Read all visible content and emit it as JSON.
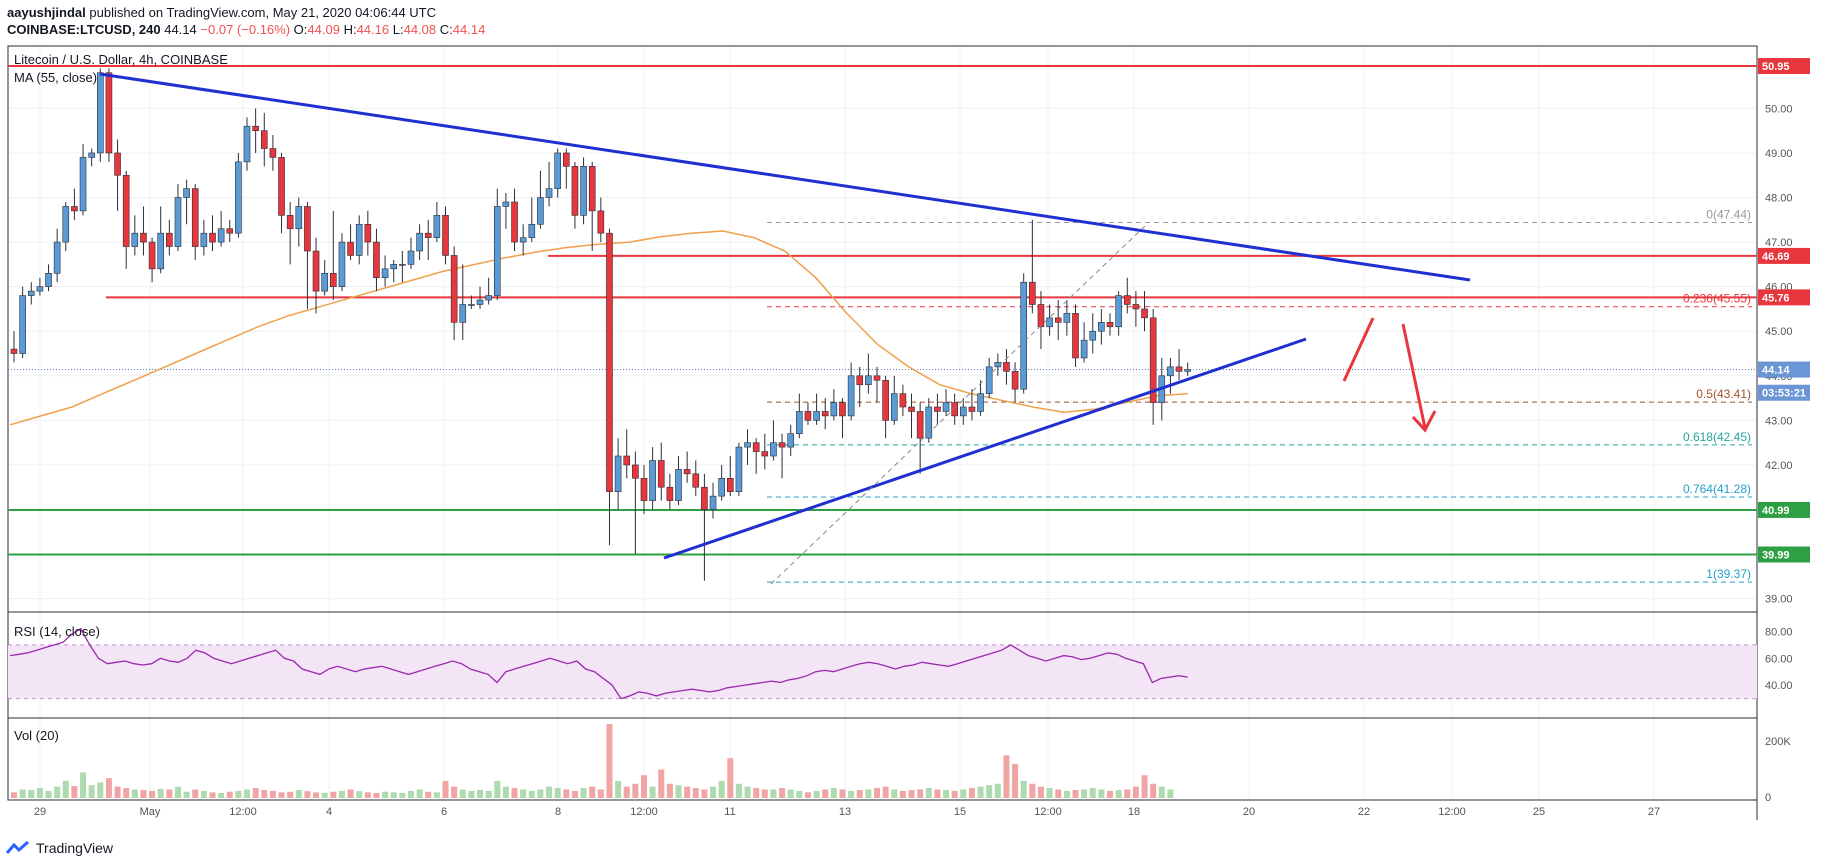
{
  "header": {
    "author": "aayushjindal",
    "published": "published on TradingView.com, May 21, 2020 04:06:44 UTC",
    "symbol": "COINBASE:LTCUSD, 240",
    "last": "44.14",
    "change": "−0.07 (−0.16%)",
    "o_label": "O:",
    "o": "44.09",
    "h_label": "H:",
    "h": "44.16",
    "l_label": "L:",
    "l": "44.08",
    "c_label": "C:",
    "c": "44.14"
  },
  "footer": {
    "brand": "TradingView"
  },
  "colors": {
    "up": "#5b9bd5",
    "down": "#e8363d",
    "trend": "#1f2fd1",
    "resistance": "#e8363d",
    "support": "#2ea043",
    "ma": "#f0a04b",
    "rsi": "#9c27b0",
    "last_price_bg": "#6b96d6"
  },
  "chart_data": {
    "type": "candlestick",
    "title": "Litecoin / U.S. Dollar, 4h, COINBASE",
    "indicator": "MA (55, close)",
    "ylim": [
      38.7,
      51.4
    ],
    "y_ticks": [
      "39.00",
      "40.00",
      "41.00",
      "42.00",
      "43.00",
      "44.00",
      "45.00",
      "46.00",
      "47.00",
      "48.00",
      "49.00",
      "50.00"
    ],
    "x_ticks": [
      "29",
      "May",
      "12:00",
      "4",
      "6",
      "8",
      "12:00",
      "11",
      "13",
      "15",
      "12:00",
      "18",
      "20",
      "22",
      "12:00",
      "25",
      "27"
    ],
    "price_axis_labels": [
      {
        "value": 50.95,
        "text": "50.95",
        "kind": "resistance"
      },
      {
        "value": 46.69,
        "text": "46.69",
        "kind": "resistance"
      },
      {
        "value": 45.76,
        "text": "45.76",
        "kind": "resistance"
      },
      {
        "value": 44.14,
        "text": "44.14",
        "kind": "last"
      },
      {
        "value": 43.62,
        "text": "03:53:21",
        "kind": "countdown"
      },
      {
        "value": 40.99,
        "text": "40.99",
        "kind": "support"
      },
      {
        "value": 39.99,
        "text": "39.99",
        "kind": "support"
      }
    ],
    "fib_levels": [
      {
        "ratio": "0",
        "value": 47.44,
        "text": "0(47.44)",
        "color": "#999999"
      },
      {
        "ratio": "0.236",
        "value": 45.55,
        "text": "0.236(45.55)",
        "color": "#e8363d"
      },
      {
        "ratio": "0.5",
        "value": 43.41,
        "text": "0.5(43.41)",
        "color": "#a0522d"
      },
      {
        "ratio": "0.618",
        "value": 42.45,
        "text": "0.618(42.45)",
        "color": "#26a69a"
      },
      {
        "ratio": "0.764",
        "value": 41.28,
        "text": "0.764(41.28)",
        "color": "#26a0c8"
      },
      {
        "ratio": "1",
        "value": 39.37,
        "text": "1(39.37)",
        "color": "#26a0c8"
      }
    ],
    "candles": [
      [
        44.6,
        44.5,
        45.0,
        44.3
      ],
      [
        44.5,
        45.8,
        46.0,
        44.4
      ],
      [
        45.8,
        45.9,
        46.1,
        45.6
      ],
      [
        45.9,
        46.0,
        46.2,
        45.8
      ],
      [
        46.0,
        46.3,
        46.5,
        45.9
      ],
      [
        46.3,
        47.0,
        47.3,
        46.1
      ],
      [
        47.0,
        47.8,
        47.9,
        46.8
      ],
      [
        47.8,
        47.7,
        48.2,
        47.5
      ],
      [
        47.7,
        48.9,
        49.2,
        47.6
      ],
      [
        48.9,
        49.0,
        49.1,
        48.7
      ],
      [
        49.0,
        50.8,
        50.9,
        48.8
      ],
      [
        50.8,
        49.0,
        50.9,
        48.8
      ],
      [
        49.0,
        48.5,
        49.3,
        47.7
      ],
      [
        48.5,
        46.9,
        48.6,
        46.4
      ],
      [
        46.9,
        47.2,
        47.6,
        46.7
      ],
      [
        47.2,
        47.0,
        47.8,
        46.7
      ],
      [
        47.0,
        46.4,
        47.1,
        46.1
      ],
      [
        46.4,
        47.2,
        47.8,
        46.3
      ],
      [
        47.2,
        46.9,
        47.5,
        46.7
      ],
      [
        46.9,
        48.0,
        48.3,
        46.8
      ],
      [
        48.0,
        48.2,
        48.4,
        47.4
      ],
      [
        48.2,
        46.9,
        48.3,
        46.6
      ],
      [
        46.9,
        47.2,
        47.5,
        46.7
      ],
      [
        47.2,
        47.0,
        47.6,
        46.8
      ],
      [
        47.0,
        47.3,
        47.7,
        46.9
      ],
      [
        47.3,
        47.2,
        47.5,
        47.0
      ],
      [
        47.2,
        48.8,
        49.0,
        47.1
      ],
      [
        48.8,
        49.6,
        49.8,
        48.6
      ],
      [
        49.6,
        49.5,
        50.0,
        49.0
      ],
      [
        49.5,
        49.1,
        49.9,
        48.7
      ],
      [
        49.1,
        48.9,
        49.4,
        48.6
      ],
      [
        48.9,
        47.6,
        49.0,
        47.2
      ],
      [
        47.6,
        47.3,
        47.9,
        46.5
      ],
      [
        47.3,
        47.8,
        48.0,
        46.9
      ],
      [
        47.8,
        46.8,
        47.9,
        45.5
      ],
      [
        46.8,
        45.9,
        47.1,
        45.4
      ],
      [
        45.9,
        46.3,
        46.6,
        45.8
      ],
      [
        46.3,
        46.0,
        47.7,
        45.7
      ],
      [
        46.0,
        47.0,
        47.2,
        45.9
      ],
      [
        47.0,
        46.7,
        47.4,
        46.6
      ],
      [
        46.7,
        47.4,
        47.6,
        46.5
      ],
      [
        47.4,
        47.0,
        47.7,
        46.7
      ],
      [
        47.0,
        46.2,
        47.3,
        45.9
      ],
      [
        46.2,
        46.4,
        46.7,
        46.0
      ],
      [
        46.4,
        46.5,
        46.6,
        46.1
      ],
      [
        46.5,
        46.5,
        46.8,
        46.1
      ],
      [
        46.5,
        46.8,
        47.1,
        46.4
      ],
      [
        46.8,
        47.2,
        47.4,
        46.6
      ],
      [
        47.2,
        47.1,
        47.5,
        46.6
      ],
      [
        47.1,
        47.6,
        47.9,
        47.0
      ],
      [
        47.6,
        46.7,
        47.8,
        46.5
      ],
      [
        46.7,
        45.2,
        46.9,
        44.8
      ],
      [
        45.2,
        45.6,
        46.5,
        44.8
      ],
      [
        45.6,
        45.6,
        45.8,
        45.5
      ],
      [
        45.6,
        45.7,
        46.0,
        45.5
      ],
      [
        45.7,
        45.8,
        46.2,
        45.6
      ],
      [
        45.8,
        47.8,
        48.2,
        45.7
      ],
      [
        47.8,
        47.9,
        48.1,
        47.3
      ],
      [
        47.9,
        47.0,
        48.2,
        46.8
      ],
      [
        47.0,
        47.1,
        47.4,
        46.7
      ],
      [
        47.1,
        47.4,
        48.0,
        47.0
      ],
      [
        47.4,
        48.0,
        48.6,
        47.3
      ],
      [
        48.0,
        48.2,
        48.8,
        47.8
      ],
      [
        48.2,
        49.0,
        49.1,
        48.0
      ],
      [
        49.0,
        48.7,
        49.1,
        48.2
      ],
      [
        48.7,
        47.6,
        48.8,
        47.3
      ],
      [
        47.6,
        48.7,
        48.9,
        47.4
      ],
      [
        48.7,
        47.7,
        48.8,
        46.8
      ],
      [
        47.7,
        47.2,
        48.0,
        47.0
      ],
      [
        47.2,
        41.4,
        47.3,
        40.2
      ],
      [
        41.4,
        42.2,
        42.6,
        41.0
      ],
      [
        42.2,
        42.0,
        42.8,
        41.7
      ],
      [
        42.0,
        41.7,
        42.3,
        40.0
      ],
      [
        41.7,
        41.2,
        42.0,
        40.9
      ],
      [
        41.2,
        42.1,
        42.4,
        41.0
      ],
      [
        42.1,
        41.5,
        42.5,
        41.2
      ],
      [
        41.5,
        41.2,
        41.8,
        41.0
      ],
      [
        41.2,
        41.9,
        42.2,
        41.1
      ],
      [
        41.9,
        41.8,
        42.3,
        41.6
      ],
      [
        41.8,
        41.5,
        42.1,
        41.3
      ],
      [
        41.5,
        41.0,
        41.8,
        39.4
      ],
      [
        41.0,
        41.3,
        41.6,
        40.8
      ],
      [
        41.3,
        41.7,
        42.0,
        41.2
      ],
      [
        41.7,
        41.4,
        42.2,
        41.3
      ],
      [
        41.4,
        42.4,
        42.5,
        41.3
      ],
      [
        42.4,
        42.5,
        42.8,
        42.0
      ],
      [
        42.5,
        42.3,
        42.6,
        41.8
      ],
      [
        42.3,
        42.2,
        42.7,
        41.9
      ],
      [
        42.2,
        42.5,
        43.0,
        42.1
      ],
      [
        42.5,
        42.4,
        42.7,
        41.7
      ],
      [
        42.4,
        42.7,
        42.9,
        42.2
      ],
      [
        42.7,
        43.2,
        43.6,
        42.6
      ],
      [
        43.2,
        43.0,
        43.4,
        42.9
      ],
      [
        43.0,
        43.2,
        43.6,
        42.9
      ],
      [
        43.2,
        43.1,
        43.5,
        42.8
      ],
      [
        43.1,
        43.4,
        43.7,
        43.0
      ],
      [
        43.4,
        43.1,
        43.5,
        42.6
      ],
      [
        43.1,
        44.0,
        44.3,
        43.0
      ],
      [
        44.0,
        43.8,
        44.2,
        43.3
      ],
      [
        43.8,
        44.0,
        44.5,
        43.6
      ],
      [
        44.0,
        43.9,
        44.2,
        43.4
      ],
      [
        43.9,
        43.0,
        44.0,
        42.6
      ],
      [
        43.0,
        43.6,
        44.0,
        42.9
      ],
      [
        43.6,
        43.3,
        43.8,
        43.1
      ],
      [
        43.3,
        43.2,
        43.6,
        42.6
      ],
      [
        43.2,
        42.6,
        43.4,
        41.8
      ],
      [
        42.6,
        43.3,
        43.5,
        42.5
      ],
      [
        43.3,
        43.2,
        43.6,
        42.9
      ],
      [
        43.2,
        43.4,
        43.7,
        43.1
      ],
      [
        43.4,
        43.1,
        43.6,
        42.9
      ],
      [
        43.1,
        43.3,
        43.5,
        42.9
      ],
      [
        43.3,
        43.2,
        43.7,
        43.0
      ],
      [
        43.2,
        43.6,
        43.9,
        43.1
      ],
      [
        43.6,
        44.2,
        44.4,
        43.5
      ],
      [
        44.2,
        44.3,
        44.5,
        44.0
      ],
      [
        44.3,
        44.1,
        44.6,
        43.8
      ],
      [
        44.1,
        43.7,
        44.3,
        43.4
      ],
      [
        43.7,
        46.1,
        46.3,
        43.6
      ],
      [
        46.1,
        45.6,
        47.5,
        45.4
      ],
      [
        45.6,
        45.1,
        45.9,
        44.6
      ],
      [
        45.1,
        45.3,
        45.6,
        44.9
      ],
      [
        45.3,
        45.2,
        45.7,
        44.8
      ],
      [
        45.2,
        45.4,
        45.7,
        44.9
      ],
      [
        45.4,
        44.4,
        45.6,
        44.2
      ],
      [
        44.4,
        44.8,
        45.2,
        44.3
      ],
      [
        44.8,
        45.0,
        45.4,
        44.5
      ],
      [
        45.0,
        45.2,
        45.5,
        44.7
      ],
      [
        45.2,
        45.1,
        45.4,
        44.9
      ],
      [
        45.1,
        45.8,
        45.9,
        44.9
      ],
      [
        45.8,
        45.6,
        46.2,
        45.4
      ],
      [
        45.6,
        45.5,
        45.9,
        45.1
      ],
      [
        45.5,
        45.3,
        45.9,
        45.0
      ],
      [
        45.3,
        43.4,
        45.5,
        42.9
      ],
      [
        43.4,
        44.0,
        44.4,
        43.0
      ],
      [
        44.0,
        44.2,
        44.4,
        43.6
      ],
      [
        44.2,
        44.1,
        44.6,
        43.9
      ],
      [
        44.1,
        44.14,
        44.3,
        44.0
      ]
    ],
    "ma55": [
      42.9,
      43.1,
      43.3,
      43.6,
      43.9,
      44.2,
      44.5,
      44.8,
      45.1,
      45.35,
      45.55,
      45.75,
      45.95,
      46.15,
      46.35,
      46.5,
      46.65,
      46.78,
      46.88,
      46.95,
      47.0,
      47.12,
      47.2,
      47.25,
      47.1,
      46.8,
      46.2,
      45.4,
      44.7,
      44.2,
      43.8,
      43.6,
      43.45,
      43.3,
      43.18,
      43.25,
      43.4,
      43.55,
      43.6
    ],
    "rsi": {
      "title": "RSI (14, close)",
      "range": [
        20,
        90
      ],
      "ticks": [
        "40.00",
        "60.00",
        "80.00"
      ],
      "band": [
        30,
        70
      ],
      "values": [
        62,
        63,
        64,
        66,
        68,
        70,
        72,
        78,
        82,
        70,
        60,
        56,
        57,
        58,
        56,
        55,
        56,
        60,
        58,
        57,
        60,
        66,
        64,
        60,
        58,
        56,
        58,
        60,
        62,
        64,
        66,
        60,
        58,
        52,
        50,
        48,
        52,
        54,
        52,
        50,
        52,
        53,
        54,
        52,
        50,
        48,
        50,
        52,
        54,
        56,
        58,
        56,
        52,
        50,
        48,
        42,
        50,
        52,
        54,
        56,
        58,
        60,
        58,
        56,
        58,
        52,
        50,
        45,
        40,
        30,
        32,
        35,
        34,
        32,
        34,
        35,
        36,
        37,
        36,
        35,
        36,
        38,
        39,
        40,
        41,
        42,
        43,
        42,
        44,
        45,
        47,
        50,
        51,
        50,
        52,
        54,
        56,
        57,
        56,
        54,
        52,
        54,
        55,
        57,
        56,
        55,
        54,
        56,
        58,
        60,
        62,
        64,
        66,
        70,
        66,
        62,
        60,
        58,
        60,
        62,
        61,
        59,
        60,
        62,
        64,
        63,
        60,
        58,
        56,
        42,
        45,
        46,
        47,
        46
      ]
    },
    "volume": {
      "title": "Vol (20)",
      "ticks": [
        "0",
        "200K"
      ],
      "max": 260000,
      "values": [
        20,
        30,
        28,
        35,
        25,
        40,
        60,
        42,
        90,
        45,
        55,
        70,
        40,
        35,
        30,
        28,
        25,
        32,
        30,
        40,
        22,
        30,
        25,
        20,
        18,
        22,
        25,
        30,
        35,
        28,
        25,
        20,
        22,
        28,
        24,
        20,
        18,
        22,
        25,
        30,
        24,
        20,
        18,
        22,
        20,
        18,
        25,
        30,
        22,
        20,
        60,
        40,
        30,
        25,
        28,
        25,
        60,
        40,
        35,
        30,
        25,
        30,
        40,
        35,
        30,
        25,
        35,
        40,
        30,
        260,
        60,
        40,
        50,
        80,
        40,
        100,
        50,
        45,
        40,
        35,
        30,
        40,
        60,
        140,
        50,
        40,
        35,
        30,
        30,
        35,
        30,
        25,
        20,
        25,
        30,
        35,
        30,
        25,
        28,
        30,
        35,
        40,
        30,
        25,
        28,
        30,
        35,
        30,
        28,
        25,
        30,
        35,
        40,
        45,
        50,
        150,
        120,
        60,
        50,
        40,
        35,
        30,
        25,
        28,
        30,
        35,
        30,
        25,
        28,
        30,
        40,
        80,
        50,
        40,
        30
      ]
    }
  }
}
